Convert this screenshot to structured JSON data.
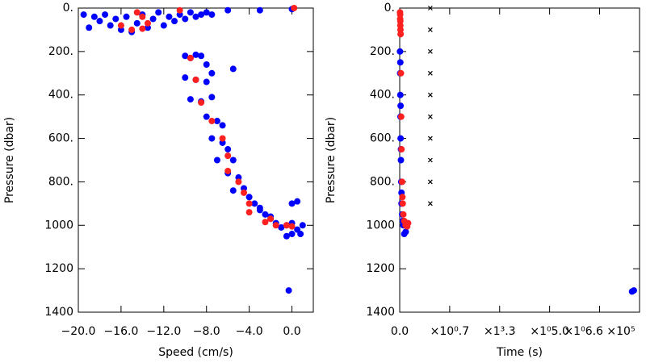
{
  "chart_data": [
    {
      "type": "scatter",
      "xlabel": "Speed (cm/s)",
      "ylabel": "Pressure (dbar)",
      "y_inverted": true,
      "xlim": [
        -20,
        2
      ],
      "ylim": [
        0,
        1400
      ],
      "xticks": [
        {
          "value": -20,
          "label": "−20.0"
        },
        {
          "value": -16,
          "label": "−16.0"
        },
        {
          "value": -12,
          "label": "−12.0"
        },
        {
          "value": -8,
          "label": "−8.0"
        },
        {
          "value": -4,
          "label": "−4.0"
        },
        {
          "value": 0,
          "label": "0.0"
        }
      ],
      "yticks": [
        {
          "value": 0,
          "label": "0."
        },
        {
          "value": 200,
          "label": "200."
        },
        {
          "value": 400,
          "label": "400."
        },
        {
          "value": 600,
          "label": "600."
        },
        {
          "value": 800,
          "label": "800."
        },
        1000,
        1200,
        1400
      ],
      "series": [
        {
          "color": "#0000ff",
          "marker": "circle",
          "x": [
            -19.5,
            -19,
            -18.5,
            -18,
            -17.5,
            -17,
            -16.5,
            -16,
            -15.5,
            -15,
            -14.5,
            -14,
            -13.5,
            -13,
            -12.5,
            -12,
            -11.5,
            -11,
            -10.5,
            -10,
            -9.5,
            -9,
            -8.5,
            -8,
            -7.5,
            -6,
            -3,
            0,
            -10,
            -9.5,
            -9,
            -8.5,
            -8,
            -7.5,
            -10,
            -9,
            -8,
            -9.5,
            -8.5,
            -7.5,
            -8,
            -7,
            -6.5,
            -7.5,
            -6.5,
            -6,
            -5.5,
            -7,
            -6,
            -5,
            -4.5,
            -5.5,
            -4,
            -3.5,
            -3,
            -2.5,
            -2,
            -1.5,
            -1,
            -0.5,
            0,
            0.5,
            0.8,
            0,
            -0.5,
            1,
            0,
            0.5,
            -5.5,
            -0.3,
            -3,
            -2
          ],
          "values": [
            30,
            90,
            40,
            60,
            30,
            80,
            50,
            100,
            40,
            110,
            70,
            30,
            90,
            50,
            20,
            80,
            40,
            60,
            30,
            50,
            20,
            40,
            30,
            20,
            30,
            10,
            10,
            5,
            220,
            230,
            215,
            220,
            260,
            300,
            320,
            330,
            340,
            420,
            430,
            410,
            500,
            520,
            540,
            600,
            620,
            650,
            700,
            700,
            760,
            780,
            830,
            840,
            870,
            900,
            920,
            950,
            970,
            990,
            1010,
            1000,
            990,
            1020,
            1040,
            1040,
            1050,
            1000,
            900,
            890,
            280,
            1300,
            930,
            960
          ]
        },
        {
          "color": "#ff2020",
          "marker": "circle",
          "x": [
            -14.5,
            -14,
            -13.5,
            -15,
            -16,
            -14,
            -10.5,
            -9.5,
            -9,
            -8.5,
            -7.5,
            -6.5,
            -6,
            -6,
            -5,
            -4.5,
            -4,
            -4,
            -2,
            -1.5,
            -0.5,
            0,
            0.2,
            -2.5
          ],
          "values": [
            20,
            40,
            70,
            100,
            80,
            95,
            10,
            230,
            330,
            435,
            520,
            600,
            680,
            750,
            800,
            850,
            900,
            940,
            970,
            1000,
            1000,
            1005,
            0,
            985
          ]
        }
      ]
    },
    {
      "type": "scatter",
      "xlabel": "Time (s)",
      "ylabel": "Pressure (dbar)",
      "y_inverted": true,
      "xlim": [
        0,
        800000
      ],
      "ylim": [
        0,
        1400
      ],
      "xticks": [
        {
          "value": 0,
          "label": "0.0"
        },
        {
          "value": 166667,
          "label": "×10⁰.7"
        },
        {
          "value": 333333,
          "label": "×1³.3"
        },
        {
          "value": 500000,
          "label": "×1⁰5.0"
        },
        {
          "value": 666667,
          "label": "×1⁰6.6 ×10⁵"
        }
      ],
      "yticks": [
        {
          "value": 0,
          "label": "0."
        },
        {
          "value": 200,
          "label": "200."
        },
        {
          "value": 400,
          "label": "400."
        },
        {
          "value": 600,
          "label": "600."
        },
        {
          "value": 800,
          "label": "800."
        },
        1000,
        1200,
        1400
      ],
      "series": [
        {
          "color": "#0000ff",
          "marker": "circle",
          "x": [
            1000,
            1500,
            2000,
            2500,
            3000,
            4000,
            5000,
            6000,
            8000,
            12000,
            15000,
            20000,
            25000,
            2000,
            3000,
            4000,
            6000,
            10000,
            781000,
            775000
          ],
          "values": [
            200,
            300,
            400,
            500,
            600,
            700,
            800,
            900,
            950,
            1000,
            1040,
            1030,
            990,
            250,
            450,
            650,
            850,
            980,
            1300,
            1305
          ]
        },
        {
          "color": "#ff2020",
          "marker": "circle",
          "x": [
            1000,
            1500,
            2000,
            2500,
            1500,
            2000,
            3000,
            4000,
            5000,
            6000,
            8000,
            10000,
            12000,
            15000,
            20000,
            25000,
            28000,
            9000
          ],
          "values": [
            20,
            50,
            80,
            100,
            30,
            60,
            120,
            300,
            500,
            650,
            800,
            900,
            950,
            980,
            1000,
            1005,
            990,
            870
          ]
        },
        {
          "color": "#000000",
          "marker": "x",
          "x": [
            102000,
            102000,
            102000,
            102000,
            102000,
            102000,
            102000,
            102000,
            102000,
            102000
          ],
          "values": [
            0,
            100,
            200,
            300,
            400,
            500,
            600,
            700,
            800,
            900
          ]
        }
      ]
    }
  ]
}
